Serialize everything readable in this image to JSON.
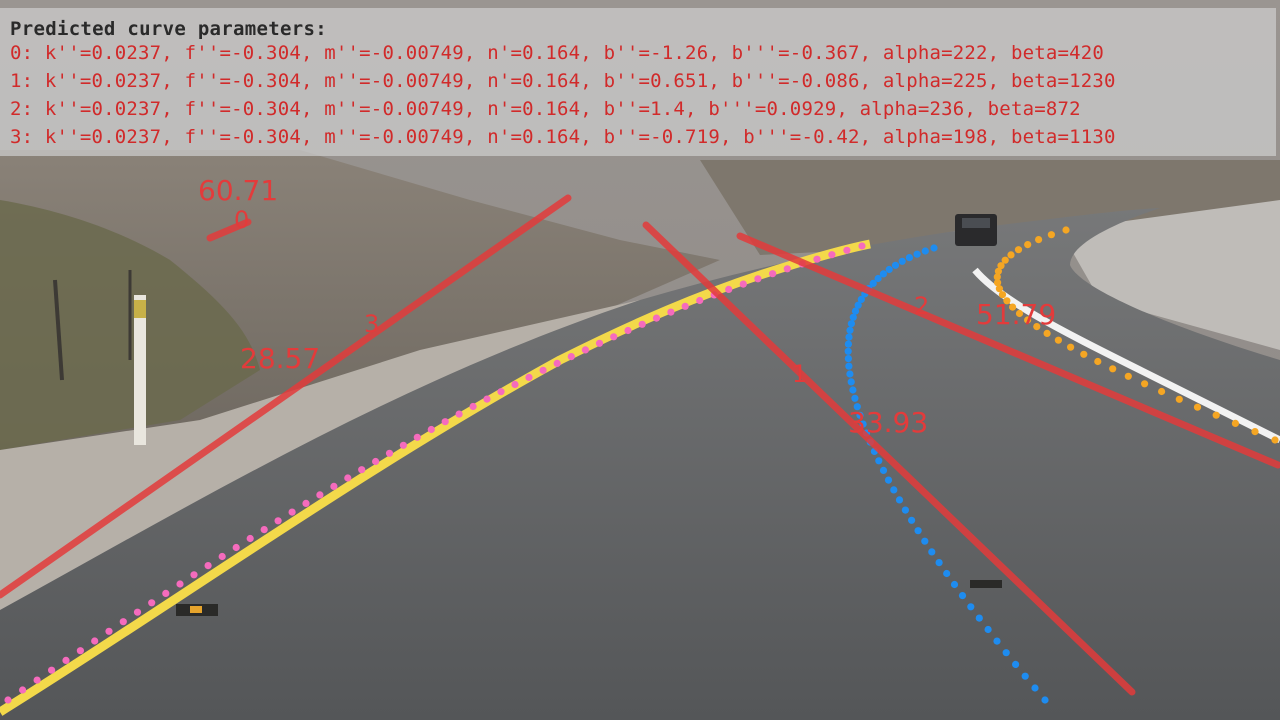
{
  "panel": {
    "title": "Predicted curve parameters:",
    "lines": [
      "0: k''=0.0237, f''=-0.304, m''=-0.00749, n'=0.164, b''=-1.26, b'''=-0.367, alpha=222, beta=420",
      "1: k''=0.0237, f''=-0.304, m''=-0.00749, n'=0.164, b''=0.651, b'''=-0.086, alpha=225, beta=1230",
      "2: k''=0.0237, f''=-0.304, m''=-0.00749, n'=0.164, b''=1.4, b'''=0.0929, alpha=236, beta=872",
      "3: k''=0.0237, f''=-0.304, m''=-0.00749, n'=0.164, b''=-0.719, b'''=-0.42, alpha=198, beta=1130"
    ]
  },
  "overlays": {
    "lane_ids": [
      "0",
      "1",
      "2",
      "3"
    ],
    "angle_labels": [
      "60.71",
      "33.93",
      "51.79",
      "28.57"
    ]
  },
  "colors": {
    "prediction_line": "#e33b3b",
    "gt_lane_left": "#f56bbd",
    "gt_lane_center": "#1e8cf0",
    "gt_lane_right": "#f5a623",
    "road_marking_yellow": "#f3d94a",
    "road_marking_white": "#f2f2f2"
  }
}
